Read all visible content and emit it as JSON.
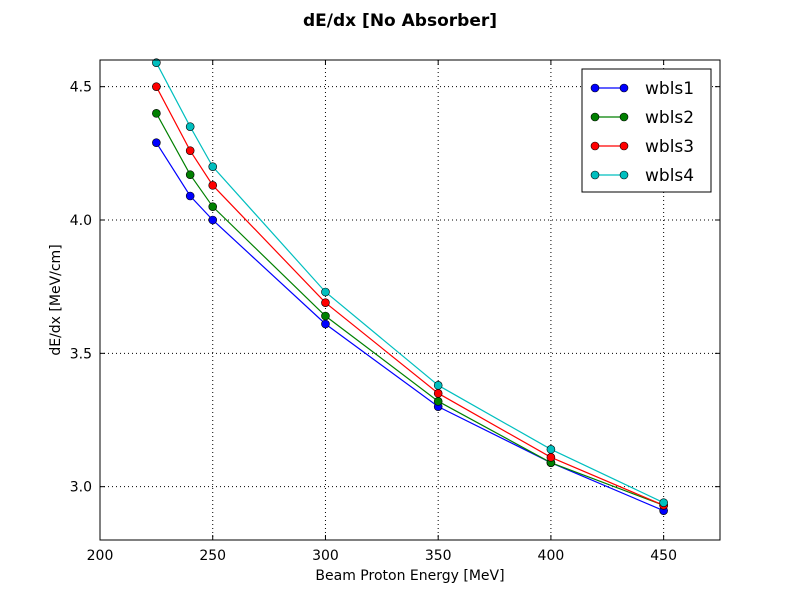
{
  "chart_data": {
    "type": "line",
    "title": "dE/dx [No Absorber]",
    "xlabel": "Beam Proton Energy [MeV]",
    "ylabel": "dE/dx [MeV/cm]",
    "xlim": [
      200,
      475
    ],
    "ylim": [
      2.8,
      4.6
    ],
    "xticks": [
      200,
      250,
      300,
      350,
      400,
      450
    ],
    "xtick_labels": [
      "200",
      "250",
      "300",
      "350",
      "400",
      "450"
    ],
    "yticks": [
      3.0,
      3.5,
      4.0,
      4.5
    ],
    "ytick_labels": [
      "3.0",
      "3.5",
      "4.0",
      "4.5"
    ],
    "grid": true,
    "legend_position": "top-right",
    "x": [
      225,
      240,
      250,
      300,
      350,
      400,
      450
    ],
    "series": [
      {
        "name": "wbls1",
        "color": "#0000ff",
        "values": [
          4.29,
          4.09,
          4.0,
          3.61,
          3.3,
          3.09,
          2.91
        ]
      },
      {
        "name": "wbls2",
        "color": "#008000",
        "values": [
          4.4,
          4.17,
          4.05,
          3.64,
          3.32,
          3.09,
          2.93
        ]
      },
      {
        "name": "wbls3",
        "color": "#ff0000",
        "values": [
          4.5,
          4.26,
          4.13,
          3.69,
          3.35,
          3.11,
          2.93
        ]
      },
      {
        "name": "wbls4",
        "color": "#00bfbf",
        "values": [
          4.59,
          4.35,
          4.2,
          3.73,
          3.38,
          3.14,
          2.94
        ]
      }
    ]
  }
}
